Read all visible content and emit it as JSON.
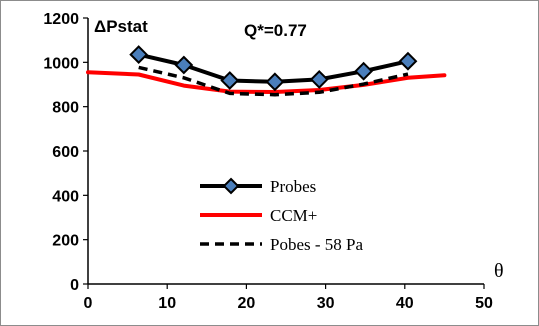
{
  "chart_data": {
    "type": "line",
    "ylabel": "ΔPstat",
    "xlabel": "θ",
    "annotation": "Q*=0.77",
    "xlim": [
      0,
      50
    ],
    "ylim": [
      0,
      1200
    ],
    "xticks": [
      0,
      10,
      20,
      30,
      40,
      50
    ],
    "yticks": [
      0,
      200,
      400,
      600,
      800,
      1000,
      1200
    ],
    "grid": false,
    "legend_position": "bottom-center",
    "series": [
      {
        "name": "Probes",
        "style": "solid-with-diamond-markers",
        "color": "#000000",
        "marker_fill": "#4a7ebb",
        "x": [
          6.4,
          12.1,
          17.9,
          23.6,
          29.2,
          34.8,
          40.4
        ],
        "y": [
          1035,
          988,
          918,
          912,
          923,
          960,
          1005
        ]
      },
      {
        "name": "CCM+",
        "style": "solid",
        "color": "#ff0000",
        "x": [
          0,
          6.4,
          12.1,
          17.9,
          23.6,
          29.2,
          34.8,
          40.4,
          45
        ],
        "y": [
          955,
          945,
          895,
          868,
          866,
          875,
          898,
          930,
          942
        ]
      },
      {
        "name": "Pobes - 58 Pa",
        "style": "dashed",
        "color": "#000000",
        "x": [
          6.4,
          12.1,
          17.9,
          23.6,
          29.2,
          34.8,
          40.4
        ],
        "y": [
          977,
          930,
          860,
          854,
          865,
          902,
          947
        ]
      }
    ]
  }
}
